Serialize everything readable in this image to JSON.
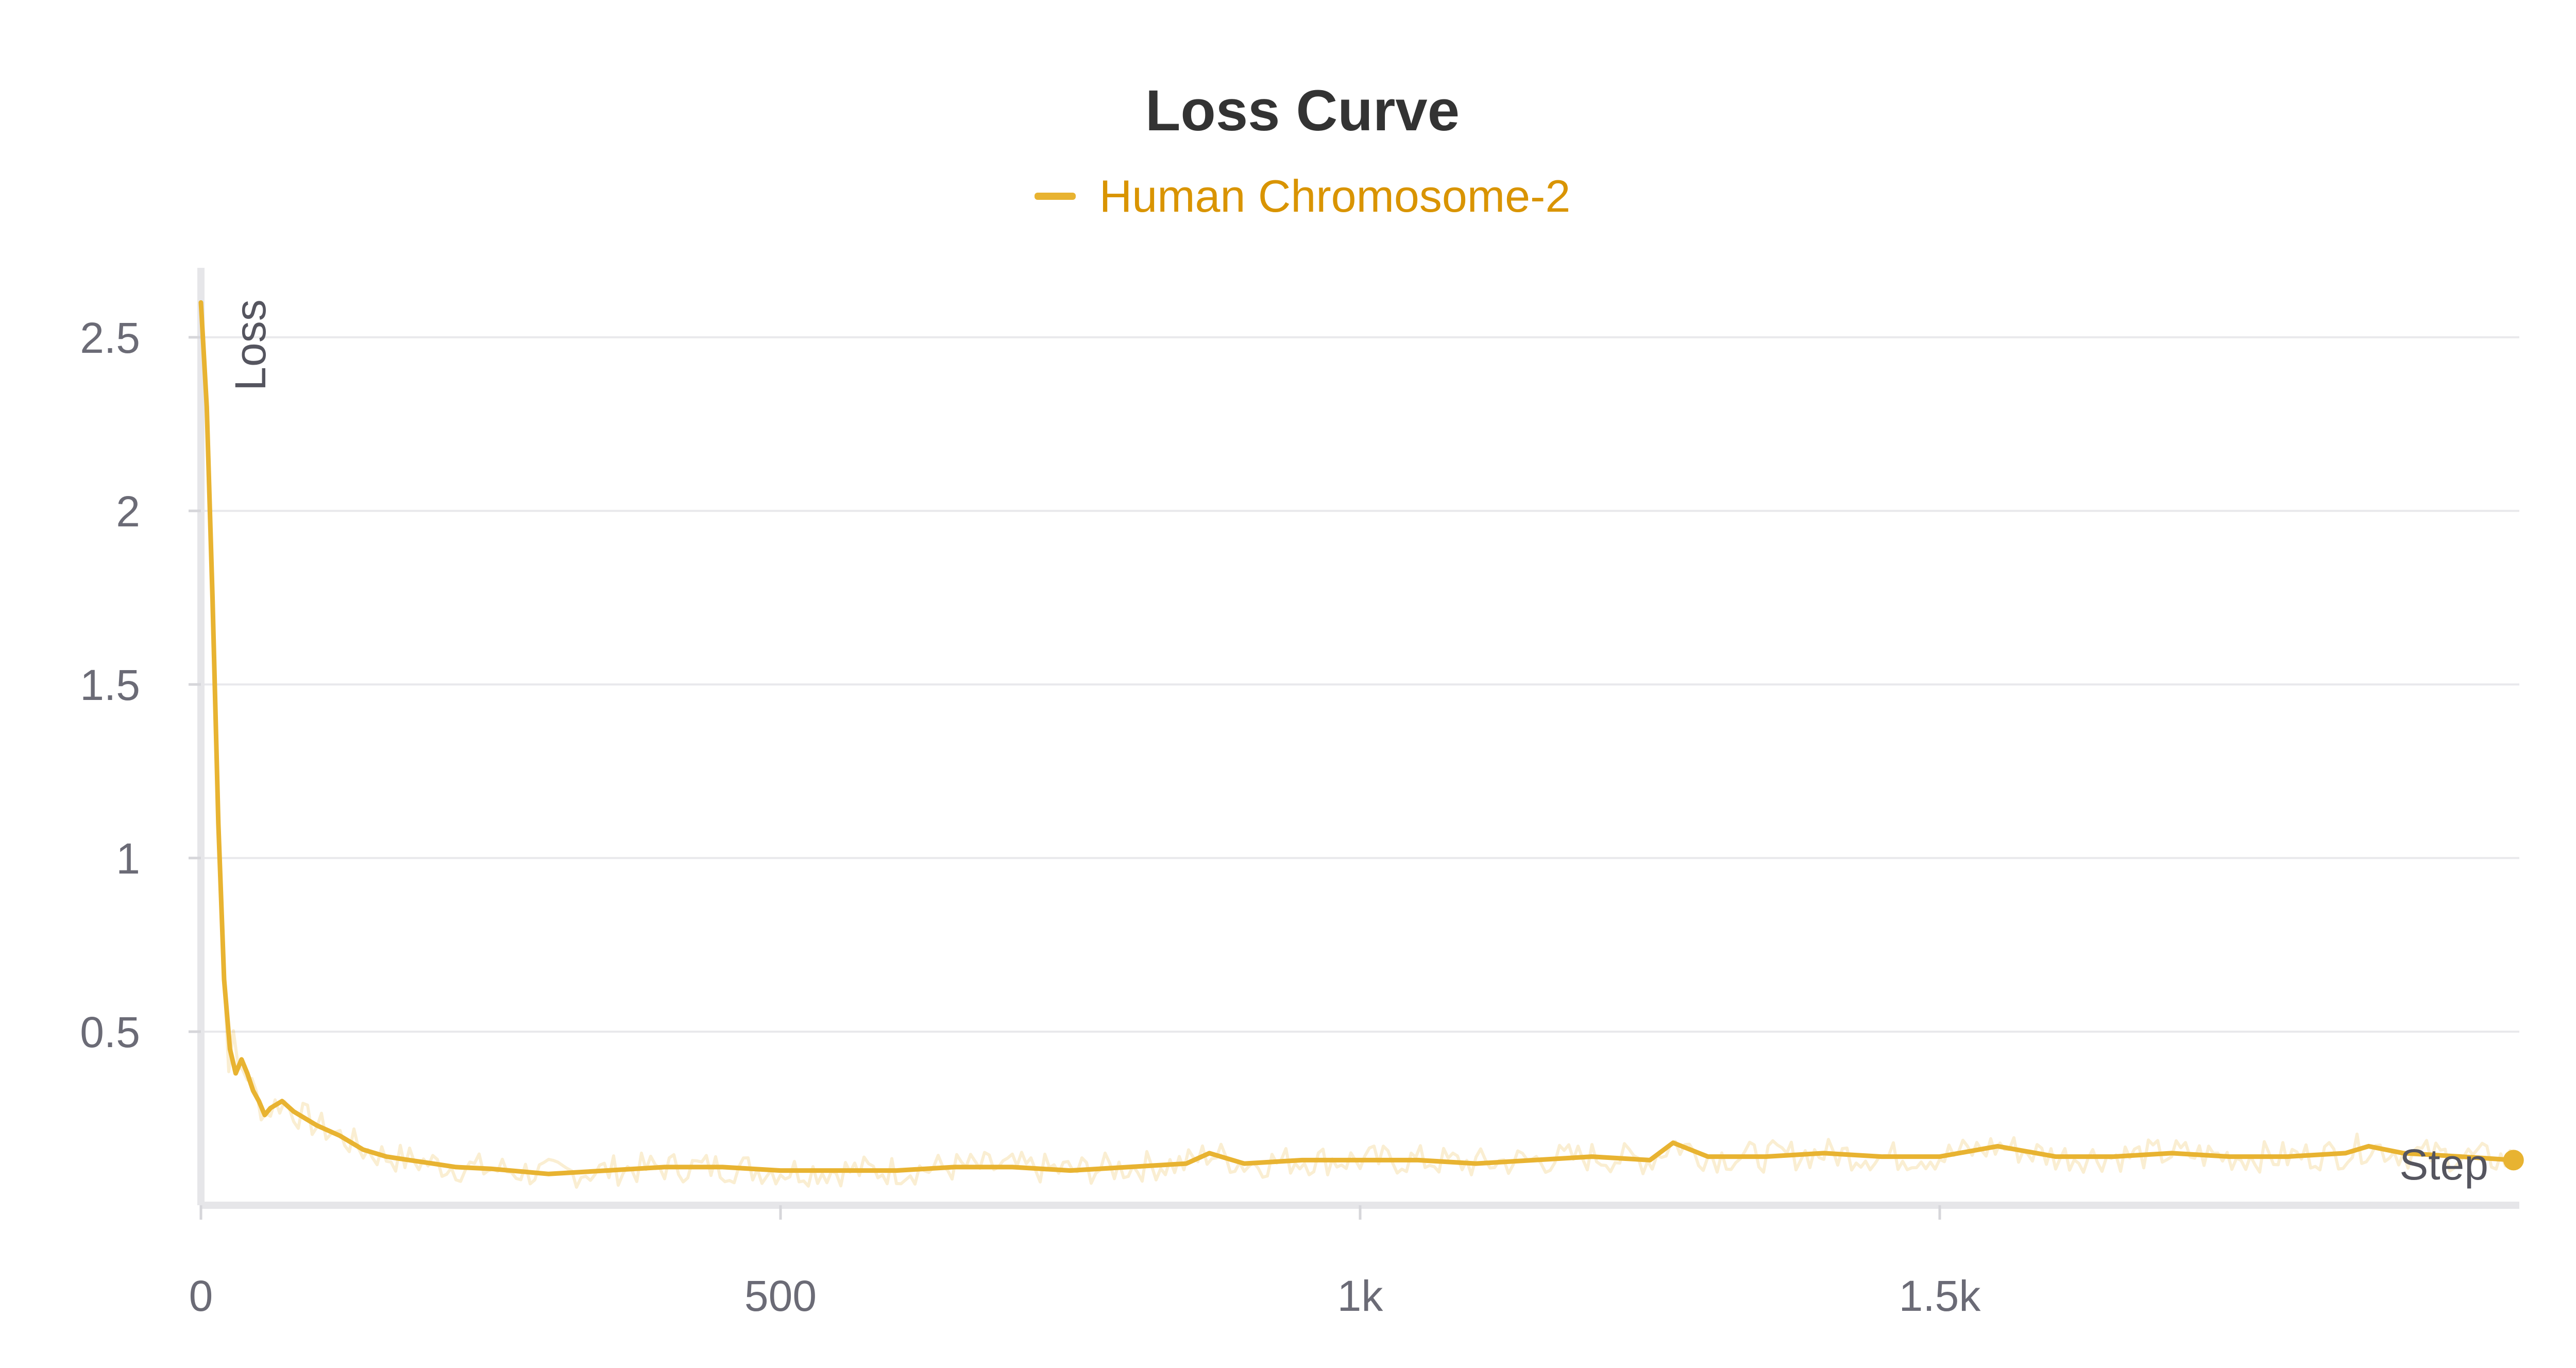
{
  "chart_data": {
    "type": "line",
    "title": "Loss Curve",
    "xlabel": "Step",
    "ylabel": "Loss",
    "xlim": [
      0,
      2000
    ],
    "ylim": [
      0,
      2.7
    ],
    "x_ticks": [
      0,
      500,
      1000,
      1500
    ],
    "x_tick_labels": [
      "0",
      "500",
      "1k",
      "1.5k"
    ],
    "y_ticks": [
      0.5,
      1,
      1.5,
      2,
      2.5
    ],
    "y_tick_labels": [
      "0.5",
      "1",
      "1.5",
      "2",
      "2.5"
    ],
    "grid": true,
    "legend_position": "top-center",
    "series": [
      {
        "name": "Human Chromosome-2",
        "color": "#e8b331",
        "x": [
          0,
          5,
          10,
          15,
          20,
          25,
          30,
          35,
          40,
          45,
          50,
          55,
          60,
          70,
          80,
          90,
          100,
          120,
          140,
          160,
          180,
          200,
          220,
          250,
          300,
          350,
          400,
          450,
          500,
          550,
          600,
          650,
          700,
          750,
          800,
          850,
          870,
          900,
          950,
          1000,
          1050,
          1100,
          1150,
          1200,
          1250,
          1270,
          1300,
          1350,
          1400,
          1450,
          1500,
          1550,
          1600,
          1650,
          1700,
          1750,
          1800,
          1850,
          1870,
          1900,
          1950,
          1995
        ],
        "values": [
          2.6,
          2.3,
          1.75,
          1.1,
          0.65,
          0.45,
          0.38,
          0.42,
          0.38,
          0.33,
          0.3,
          0.26,
          0.28,
          0.3,
          0.27,
          0.25,
          0.23,
          0.2,
          0.16,
          0.14,
          0.13,
          0.12,
          0.11,
          0.105,
          0.09,
          0.1,
          0.11,
          0.11,
          0.1,
          0.1,
          0.1,
          0.11,
          0.11,
          0.1,
          0.11,
          0.12,
          0.15,
          0.12,
          0.13,
          0.13,
          0.13,
          0.12,
          0.13,
          0.14,
          0.13,
          0.18,
          0.14,
          0.14,
          0.15,
          0.14,
          0.14,
          0.17,
          0.14,
          0.14,
          0.15,
          0.14,
          0.14,
          0.15,
          0.17,
          0.15,
          0.14,
          0.13
        ]
      }
    ]
  }
}
